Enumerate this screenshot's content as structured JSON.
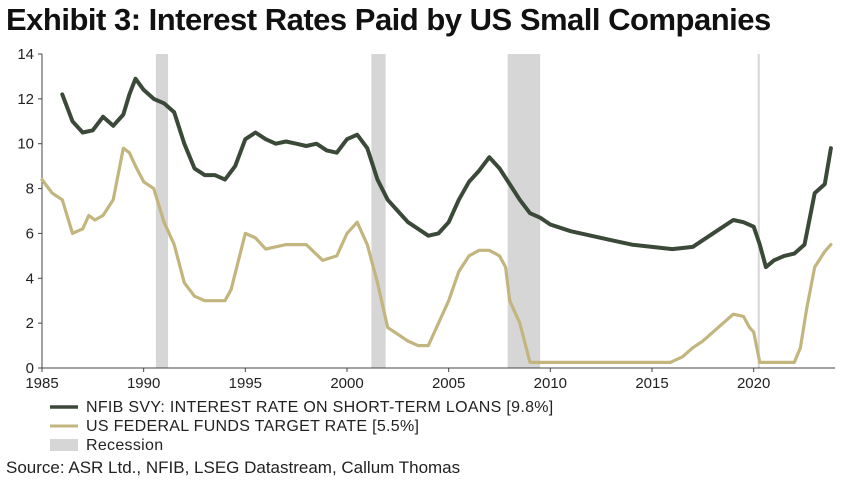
{
  "header": {
    "title": "Exhibit 3: Interest Rates Paid by US Small Companies"
  },
  "footer": {
    "source": "Source: ASR Ltd., NFIB, LSEG Datastream, Callum Thomas"
  },
  "chart_data": {
    "type": "line",
    "title": "Exhibit 3: Interest Rates Paid by US Small Companies",
    "xlabel": "",
    "ylabel": "",
    "xlim": [
      1985,
      2024
    ],
    "ylim": [
      0,
      14
    ],
    "x_ticks": [
      "1985",
      "1990",
      "1995",
      "2000",
      "2005",
      "2010",
      "2015",
      "2020"
    ],
    "y_ticks": [
      "0",
      "2",
      "4",
      "6",
      "8",
      "10",
      "12",
      "14"
    ],
    "grid": false,
    "legend_position": "bottom-left",
    "recessions": [
      [
        1990.6,
        1991.2
      ],
      [
        2001.2,
        2001.9
      ],
      [
        2007.9,
        2009.5
      ],
      [
        2020.2,
        2020.3
      ]
    ],
    "recession_label": "Recession",
    "recession_color": "#d6d6d6",
    "series": [
      {
        "name": "NFIB SVY: INTEREST RATE ON SHORT-TERM LOANS [9.8%]",
        "color": "#3b4a38",
        "x": [
          1986.0,
          1986.5,
          1987.0,
          1987.5,
          1988.0,
          1988.5,
          1989.0,
          1989.3,
          1989.6,
          1990.0,
          1990.5,
          1991.0,
          1991.5,
          1992.0,
          1992.5,
          1993.0,
          1993.5,
          1994.0,
          1994.5,
          1995.0,
          1995.5,
          1996.0,
          1996.5,
          1997.0,
          1997.5,
          1998.0,
          1998.5,
          1999.0,
          1999.5,
          2000.0,
          2000.5,
          2001.0,
          2001.5,
          2002.0,
          2002.5,
          2003.0,
          2003.5,
          2004.0,
          2004.5,
          2005.0,
          2005.5,
          2006.0,
          2006.5,
          2007.0,
          2007.5,
          2008.0,
          2008.5,
          2009.0,
          2009.5,
          2010.0,
          2011.0,
          2012.0,
          2013.0,
          2014.0,
          2015.0,
          2016.0,
          2017.0,
          2018.0,
          2018.5,
          2019.0,
          2019.5,
          2020.0,
          2020.3,
          2020.6,
          2021.0,
          2021.5,
          2022.0,
          2022.5,
          2023.0,
          2023.5,
          2023.8
        ],
        "values": [
          12.2,
          11.0,
          10.5,
          10.6,
          11.2,
          10.8,
          11.3,
          12.2,
          12.9,
          12.4,
          12.0,
          11.8,
          11.4,
          10.0,
          8.9,
          8.6,
          8.6,
          8.4,
          9.0,
          10.2,
          10.5,
          10.2,
          10.0,
          10.1,
          10.0,
          9.9,
          10.0,
          9.7,
          9.6,
          10.2,
          10.4,
          9.8,
          8.4,
          7.5,
          7.0,
          6.5,
          6.2,
          5.9,
          6.0,
          6.5,
          7.5,
          8.3,
          8.8,
          9.4,
          8.9,
          8.2,
          7.5,
          6.9,
          6.7,
          6.4,
          6.1,
          5.9,
          5.7,
          5.5,
          5.4,
          5.3,
          5.4,
          6.0,
          6.3,
          6.6,
          6.5,
          6.3,
          5.5,
          4.5,
          4.8,
          5.0,
          5.1,
          5.5,
          7.8,
          8.2,
          9.8
        ]
      },
      {
        "name": "US FEDERAL FUNDS TARGET RATE [5.5%]",
        "color": "#c2b57e",
        "x": [
          1985.0,
          1985.5,
          1986.0,
          1986.5,
          1987.0,
          1987.3,
          1987.6,
          1988.0,
          1988.5,
          1989.0,
          1989.3,
          1989.6,
          1990.0,
          1990.5,
          1991.0,
          1991.5,
          1992.0,
          1992.5,
          1993.0,
          1994.0,
          1994.3,
          1995.0,
          1995.5,
          1996.0,
          1997.0,
          1998.0,
          1998.8,
          1999.5,
          2000.0,
          2000.5,
          2001.0,
          2001.5,
          2002.0,
          2003.0,
          2003.5,
          2004.0,
          2004.5,
          2005.0,
          2005.5,
          2006.0,
          2006.5,
          2007.0,
          2007.5,
          2007.8,
          2008.0,
          2008.5,
          2009.0,
          2015.9,
          2016.5,
          2017.0,
          2017.5,
          2018.0,
          2018.5,
          2019.0,
          2019.5,
          2019.8,
          2020.0,
          2020.3,
          2021.0,
          2022.0,
          2022.3,
          2022.6,
          2023.0,
          2023.5,
          2023.8
        ],
        "values": [
          8.4,
          7.8,
          7.5,
          6.0,
          6.2,
          6.8,
          6.6,
          6.8,
          7.5,
          9.8,
          9.6,
          9.0,
          8.3,
          8.0,
          6.5,
          5.5,
          3.8,
          3.2,
          3.0,
          3.0,
          3.5,
          6.0,
          5.8,
          5.3,
          5.5,
          5.5,
          4.8,
          5.0,
          6.0,
          6.5,
          5.5,
          3.8,
          1.8,
          1.2,
          1.0,
          1.0,
          2.0,
          3.0,
          4.3,
          5.0,
          5.25,
          5.25,
          5.0,
          4.5,
          3.0,
          2.0,
          0.25,
          0.25,
          0.5,
          0.9,
          1.2,
          1.6,
          2.0,
          2.4,
          2.3,
          1.8,
          1.6,
          0.25,
          0.25,
          0.25,
          0.9,
          2.6,
          4.5,
          5.2,
          5.5
        ]
      }
    ]
  }
}
